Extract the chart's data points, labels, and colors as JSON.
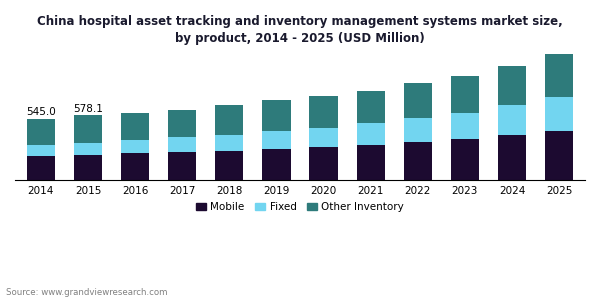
{
  "title": "China hospital asset tracking and inventory management systems market size,\nby product, 2014 - 2025 (USD Million)",
  "years": [
    2014,
    2015,
    2016,
    2017,
    2018,
    2019,
    2020,
    2021,
    2022,
    2023,
    2024,
    2025
  ],
  "mobile": [
    218,
    228,
    238,
    250,
    263,
    278,
    295,
    315,
    338,
    368,
    400,
    432
  ],
  "fixed": [
    98,
    102,
    118,
    130,
    142,
    158,
    172,
    188,
    212,
    230,
    268,
    305
  ],
  "other_inventory": [
    229,
    248,
    238,
    245,
    258,
    272,
    283,
    287,
    308,
    328,
    347,
    383
  ],
  "annotations": [
    {
      "year": 2014,
      "text": "545.0"
    },
    {
      "year": 2015,
      "text": "578.1"
    }
  ],
  "color_mobile": "#1c0a30",
  "color_fixed": "#72d5f0",
  "color_other": "#2e7b7b",
  "legend_labels": [
    "Mobile",
    "Fixed",
    "Other Inventory"
  ],
  "source_text": "Source: www.grandviewresearch.com",
  "background_color": "#ffffff",
  "bar_width": 0.6,
  "ylim": [
    0,
    1150
  ],
  "title_fontsize": 8.5,
  "tick_fontsize": 7.5
}
